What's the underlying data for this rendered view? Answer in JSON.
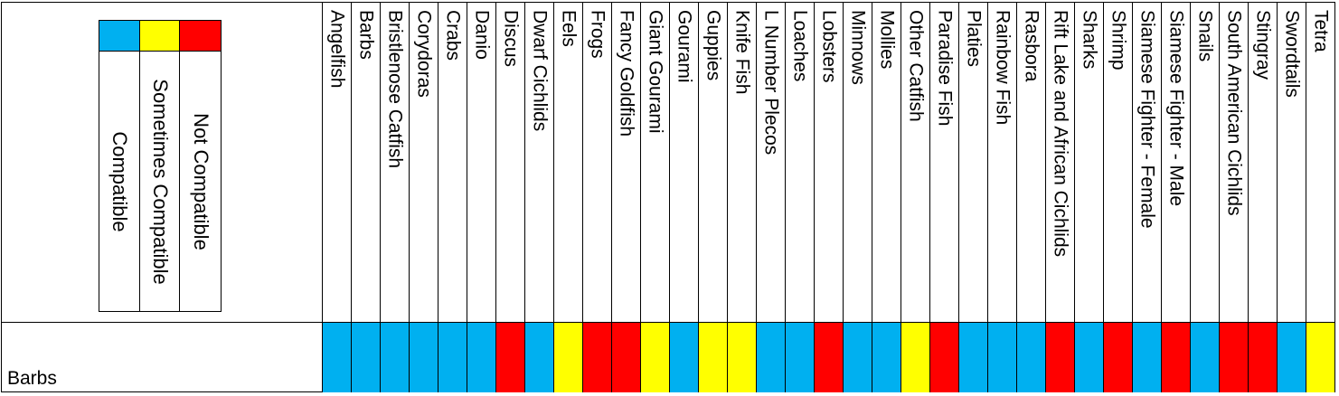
{
  "legend": {
    "items": [
      {
        "label": "Compatible",
        "color": "#00B0F0"
      },
      {
        "label": "Sometimes Compatible",
        "color": "#FFFF00"
      },
      {
        "label": "Not Compatible",
        "color": "#FF0000"
      }
    ]
  },
  "row": {
    "label": "Barbs"
  },
  "status_colors": {
    "compatible": "#00B0F0",
    "sometimes": "#FFFF00",
    "not": "#FF0000"
  },
  "columns": [
    {
      "name": "Angelfish",
      "status": "compatible"
    },
    {
      "name": "Barbs",
      "status": "compatible"
    },
    {
      "name": "Bristlenose Catfish",
      "status": "compatible"
    },
    {
      "name": "Corydoras",
      "status": "compatible"
    },
    {
      "name": "Crabs",
      "status": "compatible"
    },
    {
      "name": "Danio",
      "status": "compatible"
    },
    {
      "name": "Discus",
      "status": "not"
    },
    {
      "name": "Dwarf Cichlids",
      "status": "compatible"
    },
    {
      "name": "Eels",
      "status": "sometimes"
    },
    {
      "name": "Frogs",
      "status": "not"
    },
    {
      "name": "Fancy Goldfish",
      "status": "not"
    },
    {
      "name": "Giant Gourami",
      "status": "sometimes"
    },
    {
      "name": "Gourami",
      "status": "compatible"
    },
    {
      "name": "Guppies",
      "status": "sometimes"
    },
    {
      "name": "Knife Fish",
      "status": "sometimes"
    },
    {
      "name": "L Number Plecos",
      "status": "compatible"
    },
    {
      "name": "Loaches",
      "status": "compatible"
    },
    {
      "name": "Lobsters",
      "status": "not"
    },
    {
      "name": "Minnows",
      "status": "compatible"
    },
    {
      "name": "Mollies",
      "status": "compatible"
    },
    {
      "name": "Other Catfish",
      "status": "sometimes"
    },
    {
      "name": "Paradise Fish",
      "status": "not"
    },
    {
      "name": "Platies",
      "status": "compatible"
    },
    {
      "name": "Rainbow Fish",
      "status": "compatible"
    },
    {
      "name": "Rasbora",
      "status": "compatible"
    },
    {
      "name": "Rift Lake and African Cichlids",
      "status": "not"
    },
    {
      "name": "Sharks",
      "status": "compatible"
    },
    {
      "name": "Shrimp",
      "status": "not"
    },
    {
      "name": "Siamese Fighter - Female",
      "status": "compatible"
    },
    {
      "name": "Siamese Fighter - Male",
      "status": "not"
    },
    {
      "name": "Snails",
      "status": "compatible"
    },
    {
      "name": "South American Cichlids",
      "status": "not"
    },
    {
      "name": "Stingray",
      "status": "not"
    },
    {
      "name": "Swordtails",
      "status": "compatible"
    },
    {
      "name": "Tetra",
      "status": "sometimes"
    }
  ]
}
